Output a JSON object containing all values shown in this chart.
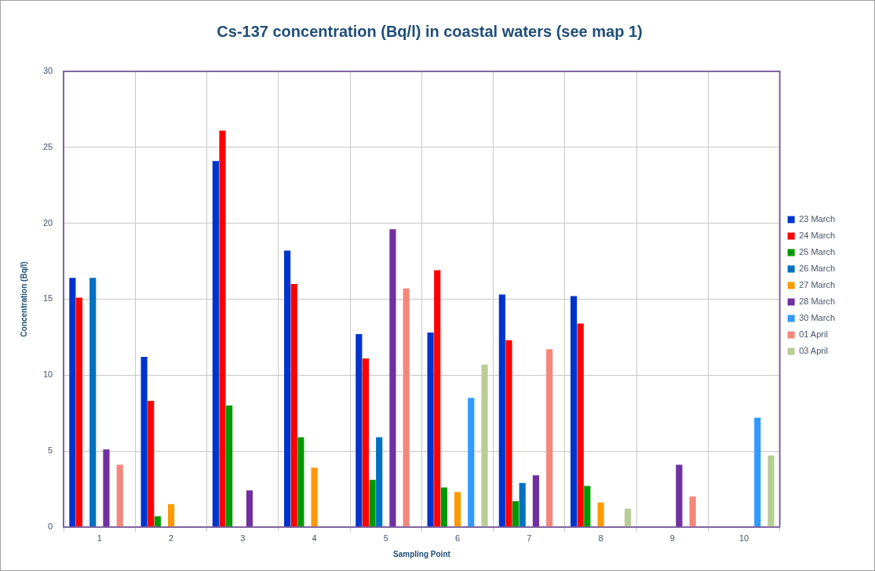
{
  "chart_data": {
    "type": "bar",
    "title": "Cs-137 concentration (Bq/l) in coastal waters (see map 1)",
    "xlabel": "Sampling Point",
    "ylabel": "Concentration (Bq/l)",
    "categories": [
      "1",
      "2",
      "3",
      "4",
      "5",
      "6",
      "7",
      "8",
      "9",
      "10"
    ],
    "ylim": [
      0,
      30
    ],
    "yticks": [
      0,
      5,
      10,
      15,
      20,
      25,
      30
    ],
    "grid": true,
    "legend": "right",
    "series": [
      {
        "name": "23 March",
        "color": "#0033cc",
        "values": [
          16.4,
          11.2,
          24.1,
          18.2,
          12.7,
          12.8,
          15.3,
          15.2,
          null,
          null
        ]
      },
      {
        "name": "24 March",
        "color": "#ff0000",
        "values": [
          15.1,
          8.3,
          26.1,
          16.0,
          11.1,
          16.9,
          12.3,
          13.4,
          null,
          null
        ]
      },
      {
        "name": "25 March",
        "color": "#009900",
        "values": [
          null,
          0.7,
          8.0,
          5.9,
          3.1,
          2.6,
          1.7,
          2.7,
          null,
          null
        ]
      },
      {
        "name": "26 March",
        "color": "#0070c0",
        "values": [
          16.4,
          null,
          null,
          null,
          5.9,
          null,
          2.9,
          null,
          null,
          null
        ]
      },
      {
        "name": "27 March",
        "color": "#ff9900",
        "values": [
          null,
          1.5,
          null,
          3.9,
          null,
          2.3,
          null,
          1.6,
          null,
          null
        ]
      },
      {
        "name": "28 March",
        "color": "#7030a0",
        "values": [
          5.1,
          null,
          2.4,
          null,
          19.6,
          null,
          3.4,
          null,
          4.1,
          null
        ]
      },
      {
        "name": "30 March",
        "color": "#3399ff",
        "values": [
          null,
          null,
          null,
          null,
          null,
          8.5,
          null,
          null,
          null,
          7.2
        ]
      },
      {
        "name": "01 April",
        "color": "#f4877b",
        "values": [
          4.1,
          null,
          null,
          null,
          15.7,
          null,
          11.7,
          null,
          2.0,
          null
        ]
      },
      {
        "name": "03 April",
        "color": "#b9cd96",
        "values": [
          null,
          null,
          null,
          null,
          null,
          10.7,
          null,
          1.2,
          null,
          4.7
        ]
      }
    ]
  }
}
